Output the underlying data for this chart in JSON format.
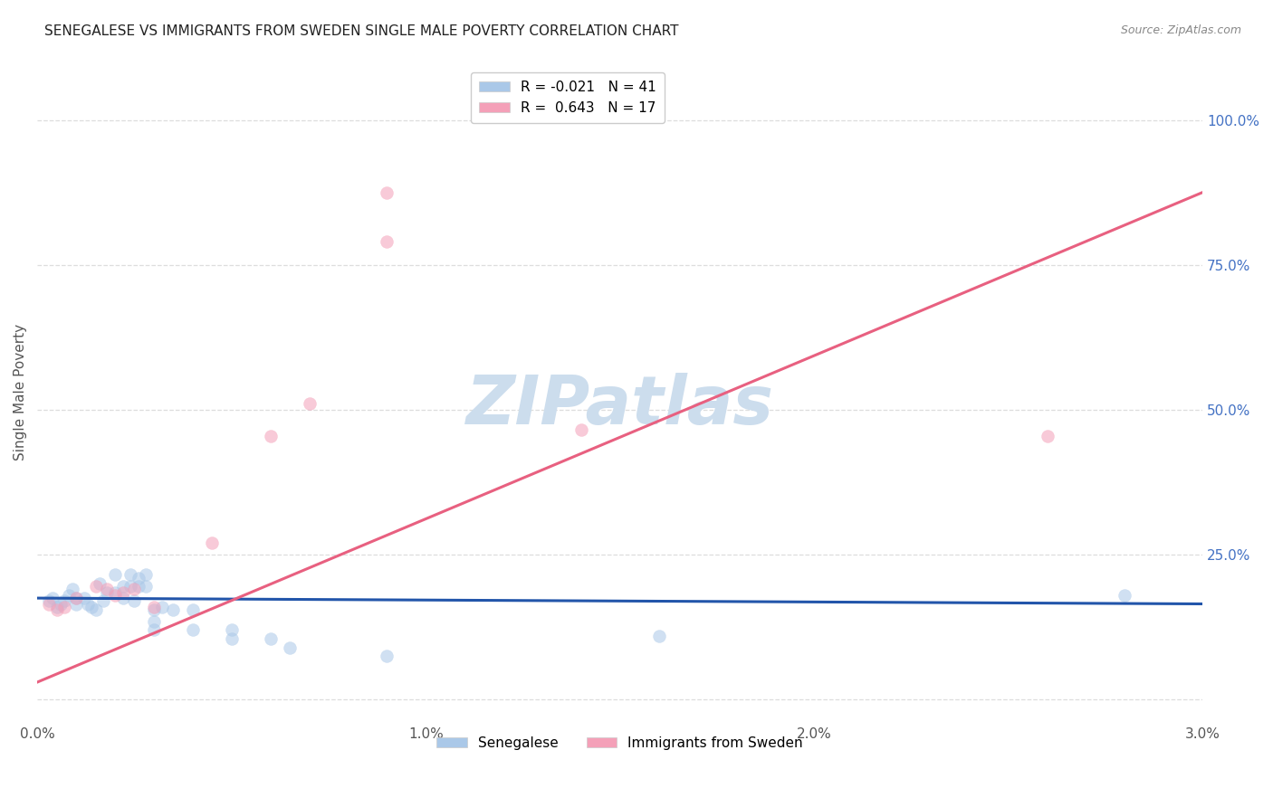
{
  "title": "SENEGALESE VS IMMIGRANTS FROM SWEDEN SINGLE MALE POVERTY CORRELATION CHART",
  "source": "Source: ZipAtlas.com",
  "ylabel": "Single Male Poverty",
  "xlim": [
    0.0,
    0.03
  ],
  "ylim": [
    -0.04,
    1.1
  ],
  "xtick_positions": [
    0.0,
    0.005,
    0.01,
    0.015,
    0.02,
    0.025,
    0.03
  ],
  "xtick_labels": [
    "0.0%",
    "",
    "1.0%",
    "",
    "2.0%",
    "",
    "3.0%"
  ],
  "ytick_positions": [
    0.0,
    0.25,
    0.5,
    0.75,
    1.0
  ],
  "ytick_labels_right": [
    "",
    "25.0%",
    "50.0%",
    "75.0%",
    "100.0%"
  ],
  "legend_top": [
    {
      "label": "R = -0.021   N = 41",
      "color": "#aac8e8"
    },
    {
      "label": "R =  0.643   N = 17",
      "color": "#f4a0b8"
    }
  ],
  "legend_bottom": [
    {
      "label": "Senegalese",
      "color": "#aac8e8"
    },
    {
      "label": "Immigrants from Sweden",
      "color": "#f4a0b8"
    }
  ],
  "blue_scatter": [
    [
      0.0003,
      0.17
    ],
    [
      0.0004,
      0.175
    ],
    [
      0.0005,
      0.16
    ],
    [
      0.0006,
      0.165
    ],
    [
      0.0007,
      0.17
    ],
    [
      0.0008,
      0.18
    ],
    [
      0.0009,
      0.19
    ],
    [
      0.001,
      0.175
    ],
    [
      0.001,
      0.165
    ],
    [
      0.0012,
      0.175
    ],
    [
      0.0013,
      0.165
    ],
    [
      0.0014,
      0.16
    ],
    [
      0.0015,
      0.155
    ],
    [
      0.0016,
      0.2
    ],
    [
      0.0017,
      0.17
    ],
    [
      0.0018,
      0.185
    ],
    [
      0.002,
      0.215
    ],
    [
      0.002,
      0.185
    ],
    [
      0.0022,
      0.195
    ],
    [
      0.0022,
      0.175
    ],
    [
      0.0024,
      0.215
    ],
    [
      0.0024,
      0.195
    ],
    [
      0.0025,
      0.17
    ],
    [
      0.0026,
      0.21
    ],
    [
      0.0026,
      0.195
    ],
    [
      0.0028,
      0.215
    ],
    [
      0.0028,
      0.195
    ],
    [
      0.003,
      0.155
    ],
    [
      0.003,
      0.135
    ],
    [
      0.003,
      0.12
    ],
    [
      0.0032,
      0.16
    ],
    [
      0.0035,
      0.155
    ],
    [
      0.004,
      0.155
    ],
    [
      0.004,
      0.12
    ],
    [
      0.005,
      0.12
    ],
    [
      0.005,
      0.105
    ],
    [
      0.006,
      0.105
    ],
    [
      0.0065,
      0.09
    ],
    [
      0.009,
      0.075
    ],
    [
      0.016,
      0.11
    ],
    [
      0.028,
      0.18
    ]
  ],
  "pink_scatter": [
    [
      0.0003,
      0.165
    ],
    [
      0.0005,
      0.155
    ],
    [
      0.0007,
      0.16
    ],
    [
      0.001,
      0.175
    ],
    [
      0.0015,
      0.195
    ],
    [
      0.0018,
      0.19
    ],
    [
      0.002,
      0.18
    ],
    [
      0.0022,
      0.185
    ],
    [
      0.0025,
      0.19
    ],
    [
      0.003,
      0.16
    ],
    [
      0.0045,
      0.27
    ],
    [
      0.006,
      0.455
    ],
    [
      0.007,
      0.51
    ],
    [
      0.009,
      0.79
    ],
    [
      0.009,
      0.875
    ],
    [
      0.014,
      0.465
    ],
    [
      0.026,
      0.455
    ]
  ],
  "blue_line_x": [
    0.0,
    0.03
  ],
  "blue_line_y": [
    0.175,
    0.165
  ],
  "pink_line_x": [
    0.0,
    0.03
  ],
  "pink_line_y": [
    0.03,
    0.875
  ],
  "scatter_size": 100,
  "scatter_alpha": 0.55,
  "blue_color": "#aac8e8",
  "pink_color": "#f4a0b8",
  "blue_line_color": "#2255aa",
  "pink_line_color": "#e86080",
  "watermark": "ZIPatlas",
  "watermark_color": "#ccdded",
  "watermark_fontsize": 54,
  "grid_color": "#dddddd",
  "grid_style": "--"
}
